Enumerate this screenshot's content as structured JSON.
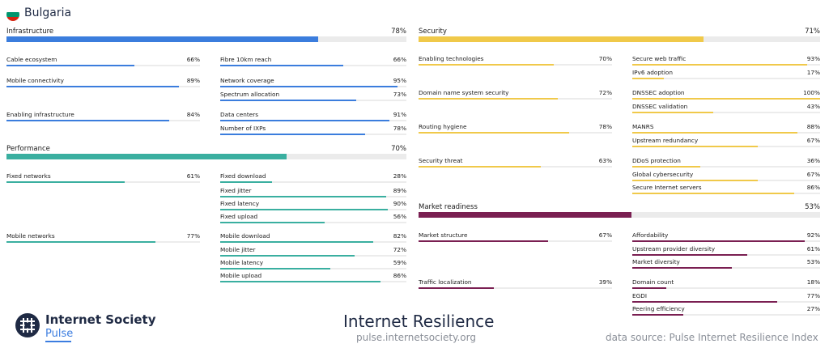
{
  "country": "Bulgaria",
  "colors": {
    "infrastructure": "#3b7ddd",
    "performance": "#3aafa0",
    "security": "#f0c94a",
    "market": "#7a1f52",
    "flag_white": "#ffffff",
    "flag_green": "#00966e",
    "flag_red": "#d62612"
  },
  "sections": [
    {
      "key": "infrastructure",
      "title": "Infrastructure",
      "pct_label": "78%",
      "value": 78,
      "groups": [
        {
          "label": "Cable ecosystem",
          "pct_label": "66%",
          "value": 66,
          "subs": [
            {
              "label": "Fibre 10km reach",
              "pct_label": "66%",
              "value": 66
            }
          ]
        },
        {
          "label": "Mobile connectivity",
          "pct_label": "89%",
          "value": 89,
          "subs": [
            {
              "label": "Network coverage",
              "pct_label": "95%",
              "value": 95
            },
            {
              "label": "Spectrum allocation",
              "pct_label": "73%",
              "value": 73
            }
          ]
        },
        {
          "label": "Enabling infrastructure",
          "pct_label": "84%",
          "value": 84,
          "subs": [
            {
              "label": "Data centers",
              "pct_label": "91%",
              "value": 91
            },
            {
              "label": "Number of IXPs",
              "pct_label": "78%",
              "value": 78
            }
          ]
        }
      ]
    },
    {
      "key": "performance",
      "title": "Performance",
      "pct_label": "70%",
      "value": 70,
      "groups": [
        {
          "label": "Fixed networks",
          "pct_label": "61%",
          "value": 61,
          "subs": [
            {
              "label": "Fixed download",
              "pct_label": "28%",
              "value": 28
            },
            {
              "label": "Fixed jitter",
              "pct_label": "89%",
              "value": 89
            },
            {
              "label": "Fixed latency",
              "pct_label": "90%",
              "value": 90
            },
            {
              "label": "Fixed upload",
              "pct_label": "56%",
              "value": 56
            }
          ]
        },
        {
          "label": "Mobile networks",
          "pct_label": "77%",
          "value": 77,
          "subs": [
            {
              "label": "Mobile download",
              "pct_label": "82%",
              "value": 82
            },
            {
              "label": "Mobile jitter",
              "pct_label": "72%",
              "value": 72
            },
            {
              "label": "Mobile latency",
              "pct_label": "59%",
              "value": 59
            },
            {
              "label": "Mobile upload",
              "pct_label": "86%",
              "value": 86
            }
          ]
        }
      ]
    },
    {
      "key": "security",
      "title": "Security",
      "pct_label": "71%",
      "value": 71,
      "groups": [
        {
          "label": "Enabling technologies",
          "pct_label": "70%",
          "value": 70,
          "subs": [
            {
              "label": "Secure web traffic",
              "pct_label": "93%",
              "value": 93
            },
            {
              "label": "IPv6 adoption",
              "pct_label": "17%",
              "value": 17
            }
          ]
        },
        {
          "label": "Domain name system security",
          "pct_label": "72%",
          "value": 72,
          "subs": [
            {
              "label": "DNSSEC adoption",
              "pct_label": "100%",
              "value": 100
            },
            {
              "label": "DNSSEC validation",
              "pct_label": "43%",
              "value": 43
            }
          ]
        },
        {
          "label": "Routing hygiene",
          "pct_label": "78%",
          "value": 78,
          "subs": [
            {
              "label": "MANRS",
              "pct_label": "88%",
              "value": 88
            },
            {
              "label": "Upstream redundancy",
              "pct_label": "67%",
              "value": 67
            }
          ]
        },
        {
          "label": "Security threat",
          "pct_label": "63%",
          "value": 63,
          "subs": [
            {
              "label": "DDoS protection",
              "pct_label": "36%",
              "value": 36
            },
            {
              "label": "Global cybersecurity",
              "pct_label": "67%",
              "value": 67
            },
            {
              "label": "Secure Internet servers",
              "pct_label": "86%",
              "value": 86
            }
          ]
        }
      ]
    },
    {
      "key": "market",
      "title": "Market readiness",
      "pct_label": "53%",
      "value": 53,
      "groups": [
        {
          "label": "Market structure",
          "pct_label": "67%",
          "value": 67,
          "subs": [
            {
              "label": "Affordability",
              "pct_label": "92%",
              "value": 92
            },
            {
              "label": "Upstream provider diversity",
              "pct_label": "61%",
              "value": 61
            },
            {
              "label": "Market diversity",
              "pct_label": "53%",
              "value": 53
            }
          ]
        },
        {
          "label": "Traffic localization",
          "pct_label": "39%",
          "value": 39,
          "subs": [
            {
              "label": "Domain count",
              "pct_label": "18%",
              "value": 18
            },
            {
              "label": "EGDI",
              "pct_label": "77%",
              "value": 77
            },
            {
              "label": "Peering efficiency",
              "pct_label": "27%",
              "value": 27
            }
          ]
        }
      ]
    }
  ],
  "footer": {
    "logo_name": "Internet Society",
    "logo_sub": "Pulse",
    "title": "Internet Resilience",
    "url": "pulse.internetsociety.org",
    "source": "data source: Pulse Internet Resilience Index"
  }
}
